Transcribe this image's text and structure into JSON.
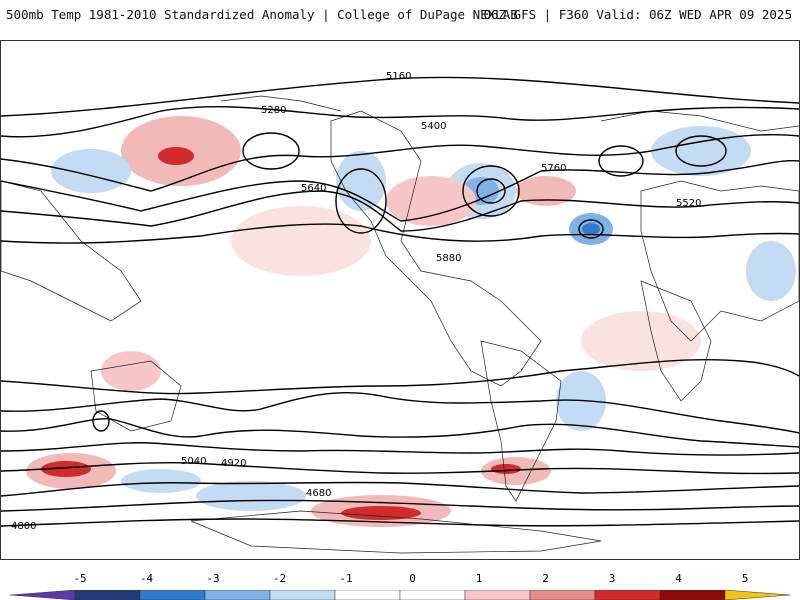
{
  "header": {
    "title_left": "500mb Temp 1981-2010 Standardized Anomaly | College of DuPage NEXLAB",
    "title_right": "06Z GFS | F360 Valid: 06Z WED APR 09 2025"
  },
  "colorbar": {
    "ticks": [
      "-5",
      "-4",
      "-3",
      "-2",
      "-1",
      "0",
      "1",
      "2",
      "3",
      "4",
      "5"
    ],
    "colors": [
      "#5a3aa8",
      "#233a78",
      "#2f7ccc",
      "#7fb2e6",
      "#c4dcf3",
      "#ffffff",
      "#ffffff",
      "#f7c7c7",
      "#e68a8a",
      "#d12a2a",
      "#8c0a0a",
      "#f2c318"
    ]
  },
  "map": {
    "contour_labels": [
      {
        "text": "5160"
      },
      {
        "text": "5280"
      },
      {
        "text": "5400"
      },
      {
        "text": "5640"
      },
      {
        "text": "5760"
      },
      {
        "text": "5880"
      },
      {
        "text": "5520"
      },
      {
        "text": "5040"
      },
      {
        "text": "4920"
      },
      {
        "text": "4800"
      },
      {
        "text": "4680"
      }
    ]
  }
}
